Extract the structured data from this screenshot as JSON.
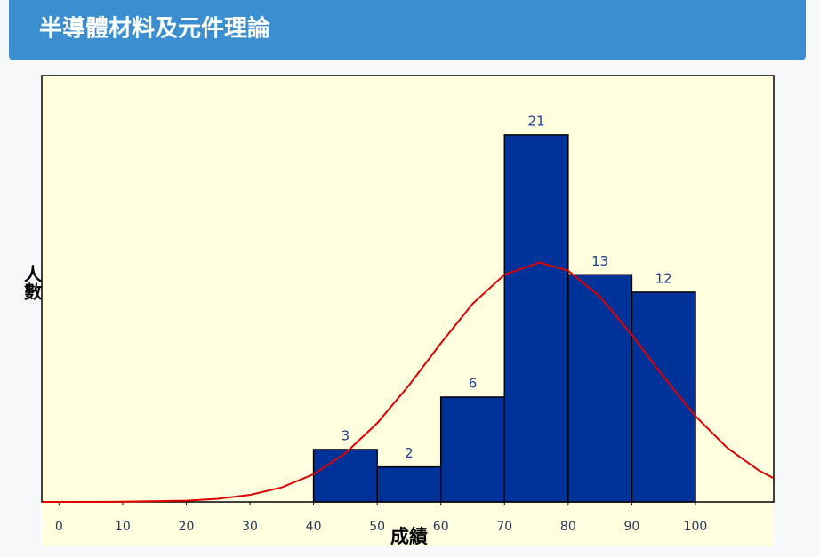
{
  "chart_data": {
    "type": "histogram",
    "title": "半導體材料及元件理論",
    "x_label": "成績",
    "y_label": "人數",
    "bins": [
      40,
      50,
      60,
      70,
      80,
      90,
      100
    ],
    "counts": [
      3,
      2,
      6,
      21,
      13,
      12
    ],
    "color": "#003399",
    "label_color": "#1c3f94",
    "xlim": [
      -2.7,
      112.3
    ],
    "ylim": [
      0,
      24.4
    ],
    "xticks": [
      0,
      10,
      20,
      30,
      40,
      50,
      60,
      70,
      80,
      90,
      100
    ],
    "curve": {
      "color": "#e00000",
      "x": [
        -2.7,
        0,
        10,
        20,
        25,
        30,
        35,
        40,
        45,
        50,
        55,
        60,
        65,
        70,
        75.5,
        80,
        85,
        90,
        95,
        100,
        105,
        110,
        112.3
      ],
      "values": [
        0,
        0,
        0.01,
        0.07,
        0.18,
        0.4,
        0.83,
        1.58,
        2.79,
        4.51,
        6.68,
        9.08,
        11.34,
        13.01,
        13.7,
        13.23,
        11.74,
        9.56,
        7.15,
        4.91,
        3.09,
        1.79,
        1.35
      ]
    }
  }
}
